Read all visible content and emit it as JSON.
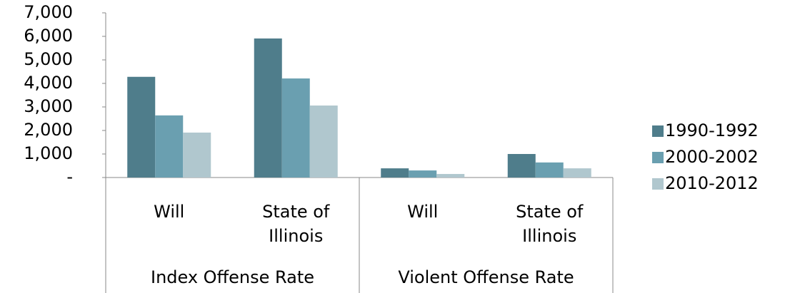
{
  "chart_data": {
    "type": "bar",
    "categories": [
      "Will",
      "State of Illinois",
      "Will",
      "State of Illinois"
    ],
    "groups": [
      {
        "name": "Index Offense Rate",
        "size": 2
      },
      {
        "name": "Violent Offense Rate",
        "size": 2
      }
    ],
    "series": [
      {
        "name": "1990-1992",
        "color": "#4f7d8b",
        "values": [
          4280,
          5910,
          390,
          1000
        ]
      },
      {
        "name": "2000-2002",
        "color": "#6a9fb0",
        "values": [
          2640,
          4210,
          300,
          640
        ]
      },
      {
        "name": "2010-2012",
        "color": "#b0c7ce",
        "values": [
          1910,
          3060,
          150,
          390
        ]
      }
    ],
    "ylim": [
      0,
      7000
    ],
    "yticks": [
      {
        "value": 0,
        "label": "-"
      },
      {
        "value": 1000,
        "label": "1,000"
      },
      {
        "value": 2000,
        "label": "2,000"
      },
      {
        "value": 3000,
        "label": "3,000"
      },
      {
        "value": 4000,
        "label": "4,000"
      },
      {
        "value": 5000,
        "label": "5,000"
      },
      {
        "value": 6000,
        "label": "6,000"
      },
      {
        "value": 7000,
        "label": "7,000"
      }
    ],
    "legend": "right"
  }
}
